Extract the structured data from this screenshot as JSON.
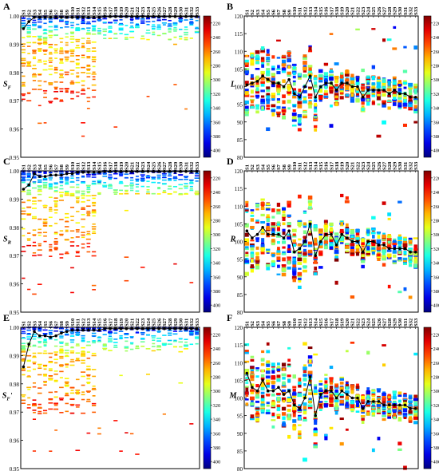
{
  "figure": {
    "categories": [
      "S1",
      "S2",
      "S3",
      "S4",
      "S5",
      "S6",
      "S7",
      "S8",
      "S9",
      "S10",
      "S11",
      "S12",
      "S13",
      "S14",
      "S15",
      "S16",
      "S17",
      "S18",
      "S19",
      "S20",
      "S21",
      "S22",
      "S23",
      "S24",
      "S25",
      "S26",
      "S27",
      "S28",
      "S29",
      "S30",
      "S31",
      "S32",
      "S33"
    ],
    "colorbar": {
      "min": 210,
      "max": 410,
      "ticks": [
        220,
        240,
        260,
        280,
        300,
        320,
        340,
        360,
        380,
        400
      ],
      "scale_top": "#d7191c",
      "scale_bottom": "#0000c8"
    }
  },
  "chart_data": [
    {
      "type": "heatmap",
      "panel": "A",
      "ylabel": "S",
      "ylabel_sub": "F",
      "ylabel_suffix": "",
      "ylim": [
        0.95,
        1.0
      ],
      "yticks": [
        "0.95",
        "0.96",
        "0.97",
        "0.98",
        "0.99",
        "1.00"
      ],
      "line_values": [
        0.9955,
        0.998,
        0.9995,
        0.9995,
        0.9995,
        0.9995,
        0.9995,
        0.9995,
        0.9995,
        0.9995,
        0.9995,
        0.9995,
        0.9995,
        0.9995,
        0.9995,
        0.9998,
        0.9998,
        0.9998,
        0.9998,
        0.9998,
        0.9998,
        0.9998,
        0.9998,
        0.9998,
        0.9998,
        0.9998,
        0.9998,
        0.9998,
        0.9998,
        0.9998,
        0.9998,
        0.9998,
        0.9998
      ]
    },
    {
      "type": "heatmap",
      "panel": "B",
      "ylabel": "L",
      "ylabel_sub": "",
      "ylabel_suffix": "",
      "ylim": [
        80,
        120
      ],
      "yticks": [
        "80",
        "85",
        "90",
        "95",
        "100",
        "105",
        "110",
        "115",
        "120"
      ],
      "line_values": [
        100.5,
        101,
        101.5,
        103,
        102,
        101,
        101,
        100,
        102,
        98,
        97,
        100,
        103,
        97,
        100,
        101,
        101,
        99,
        101,
        101,
        100,
        100,
        97,
        99,
        99,
        99,
        99,
        98,
        99,
        98,
        98,
        97,
        97
      ]
    },
    {
      "type": "heatmap",
      "panel": "C",
      "ylabel": "S",
      "ylabel_sub": "R",
      "ylabel_suffix": "",
      "ylim": [
        0.95,
        1.0
      ],
      "yticks": [
        "0.95",
        "0.96",
        "0.97",
        "0.98",
        "0.99",
        "1.00"
      ],
      "line_values": [
        0.9935,
        0.995,
        0.999,
        0.998,
        0.998,
        0.9985,
        0.9985,
        0.9985,
        0.999,
        0.999,
        0.9995,
        0.9995,
        0.9995,
        0.9995,
        0.9995,
        0.9998,
        0.9998,
        0.9998,
        0.9998,
        0.9998,
        0.9998,
        0.9998,
        0.9998,
        0.9998,
        0.9998,
        0.9998,
        0.9998,
        0.9998,
        0.9998,
        0.9998,
        0.9998,
        0.9998,
        0.9998
      ]
    },
    {
      "type": "heatmap",
      "panel": "D",
      "ylabel": "R",
      "ylabel_sub": "",
      "ylabel_suffix": "",
      "ylim": [
        80,
        120
      ],
      "yticks": [
        "80",
        "85",
        "90",
        "95",
        "100",
        "105",
        "110",
        "115",
        "120"
      ],
      "line_values": [
        103,
        101,
        102,
        104,
        102,
        102,
        102,
        101,
        103,
        97,
        98,
        100,
        105,
        96,
        100,
        102,
        102,
        99,
        102,
        101,
        100,
        100,
        97,
        100,
        100,
        99,
        99,
        98,
        98,
        98,
        98,
        97,
        97
      ]
    },
    {
      "type": "heatmap",
      "panel": "E",
      "ylabel": "S",
      "ylabel_sub": "F",
      "ylabel_suffix": "'",
      "ylim": [
        0.95,
        1.0
      ],
      "yticks": [
        "0.95",
        "0.96",
        "0.97",
        "0.98",
        "0.99",
        "1.00"
      ],
      "line_values": [
        0.986,
        0.994,
        0.9985,
        0.997,
        0.997,
        0.9965,
        0.997,
        0.998,
        0.9985,
        0.999,
        0.999,
        0.999,
        0.999,
        0.999,
        0.999,
        0.9995,
        0.9995,
        0.9995,
        0.9995,
        0.9995,
        0.9995,
        0.9995,
        0.9995,
        0.9995,
        0.9995,
        0.9995,
        0.9995,
        0.9995,
        0.9995,
        0.9995,
        0.9995,
        0.9995,
        0.9995
      ]
    },
    {
      "type": "heatmap",
      "panel": "F",
      "ylabel": "M",
      "ylabel_sub": "",
      "ylabel_suffix": "",
      "ylim": [
        80,
        120
      ],
      "yticks": [
        "80",
        "85",
        "90",
        "95",
        "100",
        "105",
        "110",
        "115",
        "120"
      ],
      "line_values": [
        107,
        103,
        102,
        105,
        102,
        102,
        103,
        101,
        102,
        98,
        97,
        100,
        106,
        95,
        101,
        102,
        102,
        100,
        102,
        101,
        100,
        100,
        97,
        99,
        99,
        99,
        98,
        98,
        98,
        98,
        98,
        97,
        97
      ]
    }
  ]
}
